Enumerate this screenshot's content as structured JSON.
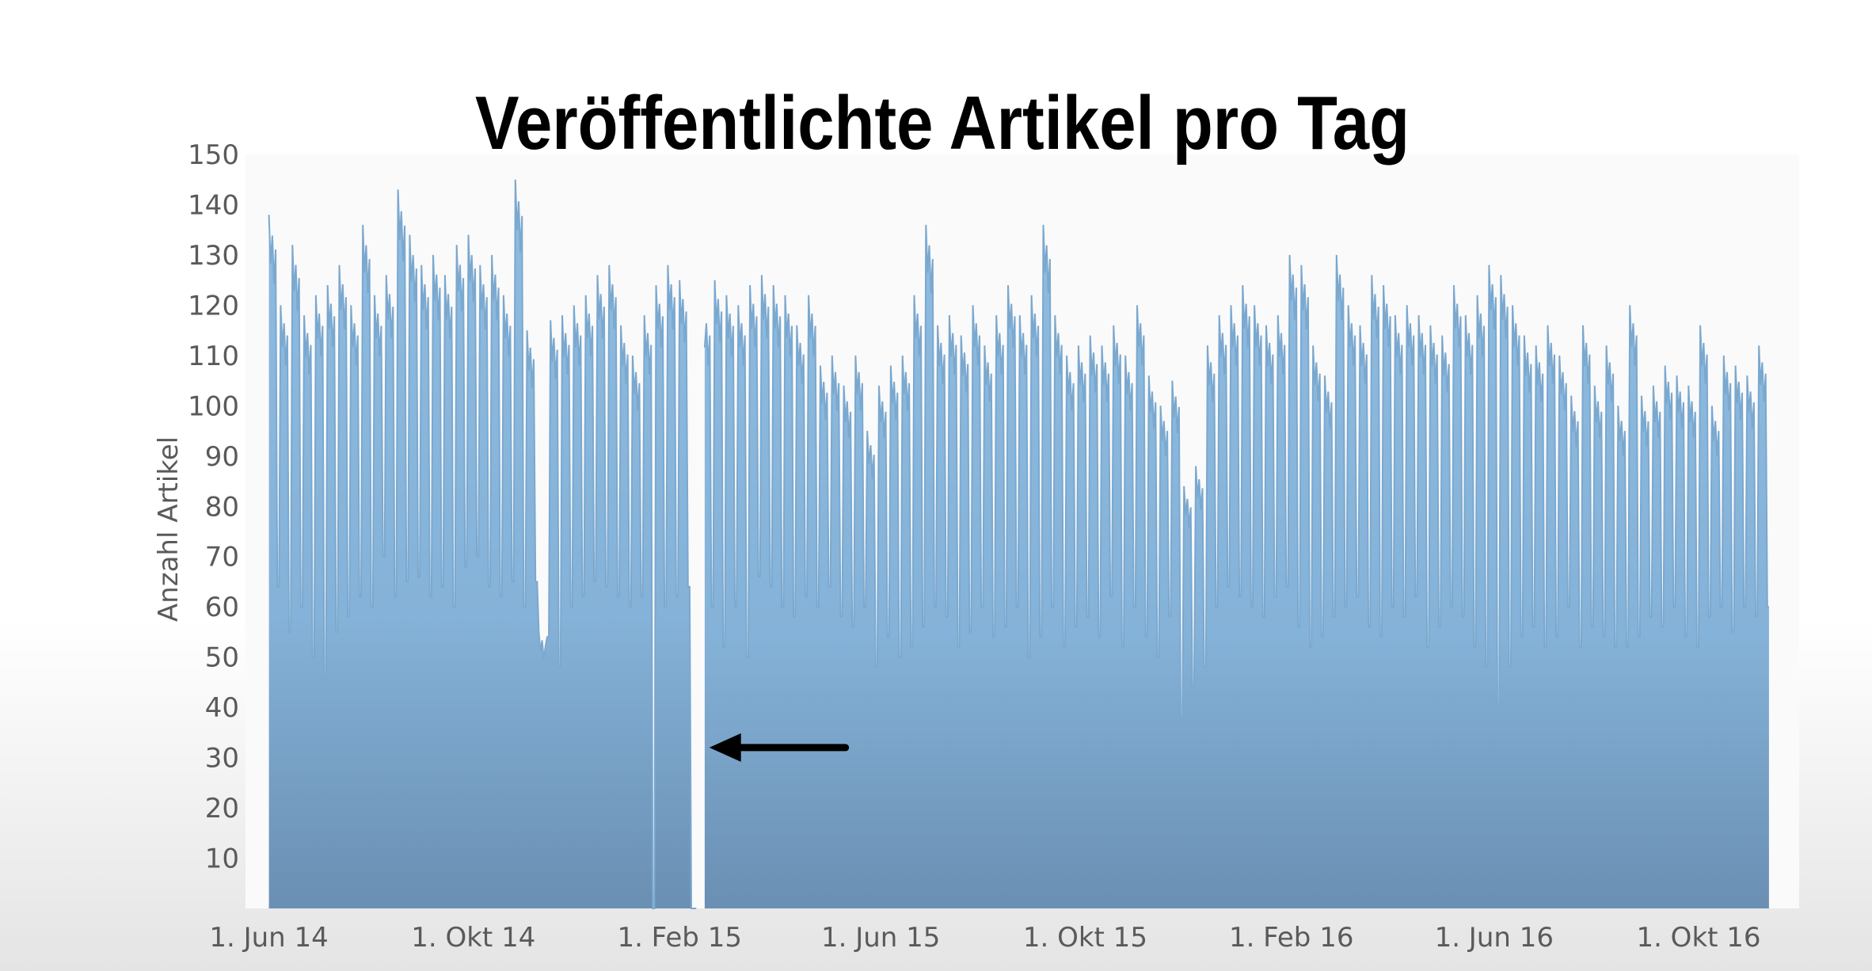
{
  "chart_data": {
    "type": "area",
    "title": "Veröffentlichte Artikel pro Tag",
    "ylabel": "Anzahl Artikel",
    "xlabel": "",
    "ylim": [
      0,
      150
    ],
    "yticks": [
      10,
      20,
      30,
      40,
      50,
      60,
      70,
      80,
      90,
      100,
      110,
      120,
      130,
      140,
      150
    ],
    "xticks": [
      {
        "date": "2014-06-01",
        "label": "1. Jun 14"
      },
      {
        "date": "2014-10-01",
        "label": "1. Okt 14"
      },
      {
        "date": "2015-02-01",
        "label": "1. Feb 15"
      },
      {
        "date": "2015-06-01",
        "label": "1. Jun 15"
      },
      {
        "date": "2015-10-01",
        "label": "1. Okt 15"
      },
      {
        "date": "2016-02-01",
        "label": "1. Feb 16"
      },
      {
        "date": "2016-06-01",
        "label": "1. Jun 16"
      },
      {
        "date": "2016-10-01",
        "label": "1. Okt 16"
      }
    ],
    "x_range": [
      "2014-05-18",
      "2016-11-30"
    ],
    "data_range": [
      "2014-06-01",
      "2016-11-14"
    ],
    "gap": [
      "2015-02-12",
      "2015-02-15"
    ],
    "grid": false,
    "legend": "none",
    "color": "#7aa8cf",
    "color_top": "#8fbbe0",
    "color_bottom": "#6a8fb3",
    "series": [
      {
        "frequency": "weekly",
        "date": [
          "2014-06-01",
          "2014-06-08",
          "2014-06-15",
          "2014-06-22",
          "2014-06-29",
          "2014-07-06",
          "2014-07-13",
          "2014-07-20",
          "2014-07-27",
          "2014-08-03",
          "2014-08-10",
          "2014-08-17",
          "2014-08-24",
          "2014-08-31",
          "2014-09-07",
          "2014-09-14",
          "2014-09-21",
          "2014-09-28",
          "2014-10-05",
          "2014-10-12",
          "2014-10-19",
          "2014-10-26",
          "2014-11-02",
          "2014-11-09",
          "2014-11-16",
          "2014-11-23",
          "2014-11-30",
          "2014-12-07",
          "2014-12-14",
          "2014-12-21",
          "2014-12-28",
          "2015-01-04",
          "2015-01-11",
          "2015-01-18",
          "2015-01-25",
          "2015-02-01",
          "2015-02-08",
          "2015-02-15",
          "2015-02-22",
          "2015-03-01",
          "2015-03-08",
          "2015-03-15",
          "2015-03-22",
          "2015-03-29",
          "2015-04-05",
          "2015-04-12",
          "2015-04-19",
          "2015-04-26",
          "2015-05-03",
          "2015-05-10",
          "2015-05-17",
          "2015-05-24",
          "2015-05-31",
          "2015-06-07",
          "2015-06-14",
          "2015-06-21",
          "2015-06-28",
          "2015-07-05",
          "2015-07-12",
          "2015-07-19",
          "2015-07-26",
          "2015-08-02",
          "2015-08-09",
          "2015-08-16",
          "2015-08-23",
          "2015-08-30",
          "2015-09-06",
          "2015-09-13",
          "2015-09-20",
          "2015-09-27",
          "2015-10-04",
          "2015-10-11",
          "2015-10-18",
          "2015-10-25",
          "2015-11-01",
          "2015-11-08",
          "2015-11-15",
          "2015-11-22",
          "2015-11-29",
          "2015-12-06",
          "2015-12-13",
          "2015-12-20",
          "2015-12-27",
          "2016-01-03",
          "2016-01-10",
          "2016-01-17",
          "2016-01-24",
          "2016-01-31",
          "2016-02-07",
          "2016-02-14",
          "2016-02-21",
          "2016-02-28",
          "2016-03-06",
          "2016-03-13",
          "2016-03-20",
          "2016-03-27",
          "2016-04-03",
          "2016-04-10",
          "2016-04-17",
          "2016-04-24",
          "2016-05-01",
          "2016-05-08",
          "2016-05-15",
          "2016-05-22",
          "2016-05-29",
          "2016-06-05",
          "2016-06-12",
          "2016-06-19",
          "2016-06-26",
          "2016-07-03",
          "2016-07-10",
          "2016-07-17",
          "2016-07-24",
          "2016-07-31",
          "2016-08-07",
          "2016-08-14",
          "2016-08-21",
          "2016-08-28",
          "2016-09-04",
          "2016-09-11",
          "2016-09-18",
          "2016-09-25",
          "2016-10-02",
          "2016-10-09",
          "2016-10-16",
          "2016-10-23",
          "2016-10-30",
          "2016-11-06"
        ],
        "weekday_peak": [
          138,
          120,
          132,
          118,
          122,
          124,
          128,
          120,
          136,
          122,
          126,
          143,
          134,
          128,
          130,
          126,
          132,
          134,
          128,
          130,
          122,
          145,
          115,
          55,
          117,
          118,
          120,
          122,
          126,
          128,
          116,
          110,
          118,
          124,
          128,
          125,
          0,
          120,
          125,
          122,
          120,
          124,
          126,
          124,
          122,
          116,
          122,
          108,
          110,
          104,
          110,
          95,
          104,
          108,
          110,
          122,
          136,
          116,
          118,
          114,
          120,
          112,
          118,
          124,
          118,
          122,
          136,
          118,
          110,
          112,
          114,
          112,
          116,
          110,
          120,
          106,
          100,
          105,
          84,
          88,
          112,
          118,
          120,
          124,
          120,
          116,
          118,
          130,
          128,
          112,
          106,
          130,
          120,
          116,
          126,
          124,
          118,
          120,
          118,
          116,
          114,
          124,
          118,
          122,
          128,
          126,
          120,
          114,
          112,
          116,
          110,
          102,
          116,
          104,
          112,
          100,
          120,
          102,
          104,
          108,
          106,
          104,
          116,
          100,
          110,
          108,
          106,
          112
        ],
        "weekend_low": [
          64,
          55,
          60,
          50,
          46,
          55,
          58,
          62,
          60,
          70,
          62,
          65,
          66,
          62,
          64,
          60,
          68,
          70,
          64,
          62,
          65,
          60,
          65,
          54,
          48,
          60,
          62,
          65,
          64,
          62,
          60,
          62,
          0,
          60,
          62,
          64,
          0,
          60,
          52,
          60,
          50,
          66,
          64,
          60,
          58,
          62,
          60,
          64,
          58,
          56,
          60,
          48,
          54,
          50,
          52,
          56,
          60,
          58,
          52,
          55,
          60,
          54,
          56,
          60,
          50,
          54,
          60,
          52,
          56,
          58,
          54,
          62,
          52,
          60,
          54,
          50,
          58,
          38,
          44,
          48,
          60,
          64,
          62,
          60,
          58,
          62,
          64,
          56,
          52,
          54,
          58,
          60,
          62,
          56,
          54,
          60,
          58,
          62,
          52,
          56,
          60,
          58,
          52,
          48,
          40,
          48,
          54,
          56,
          52,
          54,
          60,
          52,
          56,
          54,
          52,
          52,
          54,
          58,
          56,
          60,
          54,
          52,
          58,
          60,
          55,
          60,
          58,
          60
        ]
      }
    ]
  },
  "annotation": {
    "arrow_date": "2015-02-14",
    "arrow_value": 32
  }
}
